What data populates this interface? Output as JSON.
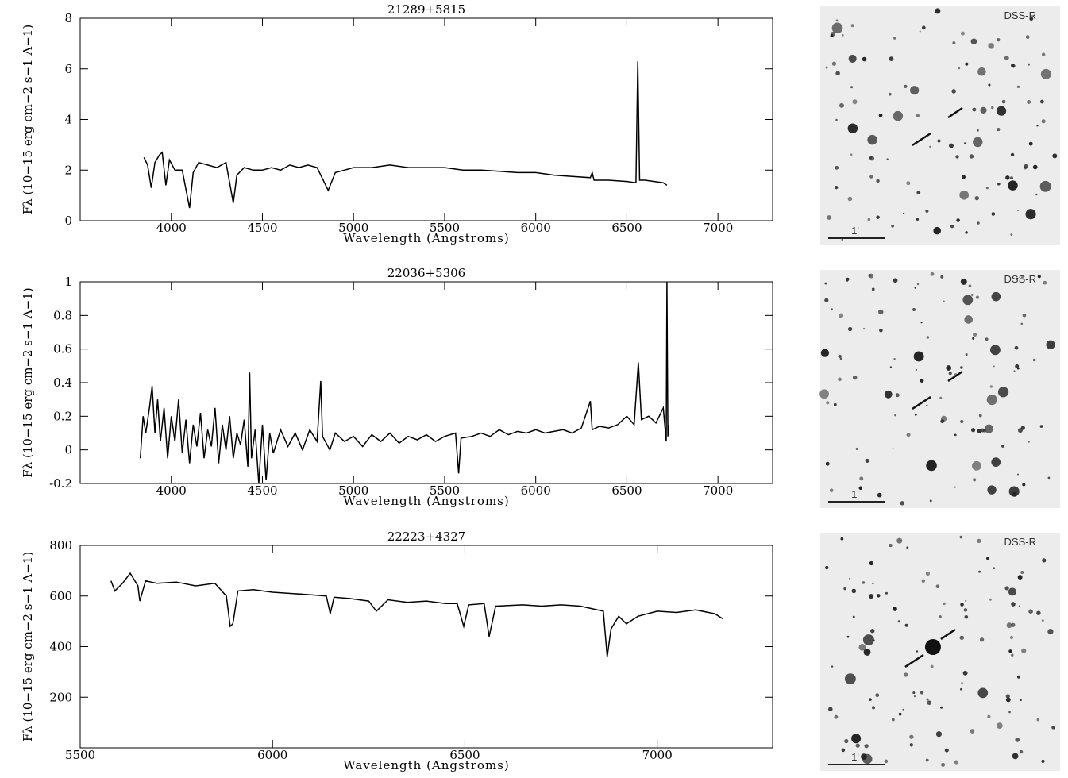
{
  "chart_data": [
    {
      "type": "line",
      "title": "21289+5815",
      "x_label": "Wavelength (Angstroms)",
      "y_label": "Fλ (10−15 erg cm−2 s−1 A−1)",
      "color": "#000000",
      "xlim": [
        3500,
        7300
      ],
      "xticks": [
        4000,
        4500,
        5000,
        5500,
        6000,
        6500,
        7000
      ],
      "ylim": [
        0,
        8
      ],
      "yticks": [
        0,
        2,
        4,
        6,
        8
      ],
      "x": [
        3850,
        3870,
        3890,
        3910,
        3935,
        3950,
        3970,
        3990,
        4020,
        4060,
        4100,
        4120,
        4150,
        4200,
        4250,
        4300,
        4340,
        4360,
        4400,
        4450,
        4500,
        4550,
        4600,
        4650,
        4700,
        4750,
        4800,
        4861,
        4900,
        4950,
        5000,
        5100,
        5200,
        5300,
        5400,
        5500,
        5600,
        5700,
        5800,
        5900,
        6000,
        6100,
        6200,
        6300,
        6310,
        6320,
        6400,
        6500,
        6550,
        6560,
        6570,
        6600,
        6650,
        6700,
        6720
      ],
      "values": [
        2.5,
        2.2,
        1.3,
        2.3,
        2.6,
        2.7,
        1.4,
        2.4,
        2.0,
        2.0,
        0.5,
        1.9,
        2.3,
        2.2,
        2.1,
        2.3,
        0.7,
        1.8,
        2.1,
        2.0,
        2.0,
        2.1,
        2.0,
        2.2,
        2.1,
        2.2,
        2.1,
        1.2,
        1.9,
        2.0,
        2.1,
        2.1,
        2.2,
        2.1,
        2.1,
        2.1,
        2.0,
        2.0,
        1.95,
        1.9,
        1.9,
        1.8,
        1.75,
        1.7,
        1.9,
        1.6,
        1.6,
        1.55,
        1.5,
        6.3,
        1.6,
        1.6,
        1.55,
        1.5,
        1.4
      ]
    },
    {
      "type": "line",
      "title": "22036+5306",
      "x_label": "Wavelength (Angstroms)",
      "y_label": "Fλ (10−15 erg cm−2 s−1 A−1)",
      "color": "#000000",
      "xlim": [
        3500,
        7300
      ],
      "xticks": [
        4000,
        4500,
        5000,
        5500,
        6000,
        6500,
        7000
      ],
      "ylim": [
        -0.2,
        1
      ],
      "yticks": [
        -0.2,
        0,
        0.2,
        0.4,
        0.6,
        0.8,
        1
      ],
      "x": [
        3830,
        3845,
        3860,
        3880,
        3895,
        3910,
        3925,
        3940,
        3960,
        3980,
        4000,
        4020,
        4040,
        4060,
        4080,
        4100,
        4120,
        4140,
        4160,
        4180,
        4200,
        4220,
        4240,
        4260,
        4280,
        4300,
        4320,
        4340,
        4360,
        4380,
        4400,
        4420,
        4430,
        4440,
        4460,
        4480,
        4500,
        4520,
        4540,
        4560,
        4600,
        4640,
        4680,
        4720,
        4760,
        4800,
        4820,
        4830,
        4870,
        4900,
        4950,
        5000,
        5050,
        5100,
        5150,
        5200,
        5250,
        5300,
        5350,
        5400,
        5450,
        5500,
        5560,
        5577,
        5590,
        5650,
        5700,
        5750,
        5800,
        5850,
        5900,
        5950,
        6000,
        6050,
        6100,
        6150,
        6200,
        6250,
        6300,
        6310,
        6350,
        6400,
        6450,
        6500,
        6540,
        6563,
        6580,
        6620,
        6660,
        6700,
        6716,
        6720,
        6725,
        6730
      ],
      "values": [
        -0.05,
        0.2,
        0.1,
        0.25,
        0.38,
        0.1,
        0.3,
        0.05,
        0.25,
        -0.05,
        0.2,
        0.05,
        0.3,
        -0.02,
        0.18,
        -0.08,
        0.15,
        0.02,
        0.22,
        -0.05,
        0.12,
        0.02,
        0.25,
        -0.08,
        0.15,
        0.0,
        0.2,
        -0.05,
        0.1,
        0.03,
        0.18,
        -0.1,
        0.46,
        -0.05,
        0.12,
        -0.2,
        0.15,
        -0.18,
        0.1,
        -0.02,
        0.12,
        0.02,
        0.1,
        0.0,
        0.12,
        0.05,
        0.41,
        0.08,
        0.0,
        0.1,
        0.05,
        0.08,
        0.02,
        0.09,
        0.05,
        0.1,
        0.04,
        0.08,
        0.06,
        0.09,
        0.05,
        0.08,
        0.1,
        -0.14,
        0.07,
        0.08,
        0.1,
        0.08,
        0.12,
        0.09,
        0.11,
        0.1,
        0.12,
        0.1,
        0.11,
        0.12,
        0.1,
        0.13,
        0.29,
        0.12,
        0.14,
        0.13,
        0.15,
        0.2,
        0.15,
        0.52,
        0.18,
        0.2,
        0.16,
        0.25,
        0.05,
        1.0,
        0.08,
        0.15
      ]
    },
    {
      "type": "line",
      "title": "22223+4327",
      "x_label": "Wavelength (Angstroms)",
      "y_label": "Fλ (10−15 erg cm−2 s−1 A−1)",
      "color": "#000000",
      "xlim": [
        5500,
        7300
      ],
      "xticks": [
        5500,
        6000,
        6500,
        7000
      ],
      "ylim": [
        0,
        800
      ],
      "yticks": [
        200,
        400,
        600,
        800
      ],
      "x": [
        5580,
        5590,
        5610,
        5630,
        5650,
        5655,
        5670,
        5700,
        5750,
        5800,
        5850,
        5880,
        5890,
        5897,
        5910,
        5950,
        6000,
        6050,
        6100,
        6140,
        6150,
        6160,
        6200,
        6250,
        6270,
        6300,
        6350,
        6400,
        6450,
        6480,
        6497,
        6510,
        6550,
        6563,
        6580,
        6650,
        6700,
        6750,
        6800,
        6860,
        6870,
        6880,
        6900,
        6920,
        6950,
        7000,
        7050,
        7100,
        7150,
        7170
      ],
      "values": [
        660,
        620,
        650,
        690,
        640,
        580,
        660,
        650,
        655,
        640,
        650,
        600,
        480,
        490,
        620,
        625,
        615,
        610,
        605,
        600,
        530,
        595,
        590,
        580,
        540,
        585,
        575,
        580,
        570,
        570,
        480,
        565,
        570,
        440,
        560,
        565,
        560,
        565,
        560,
        540,
        360,
        470,
        520,
        490,
        520,
        540,
        535,
        545,
        530,
        510
      ]
    }
  ],
  "images": [
    {
      "label": "DSS-R",
      "scale": "1'"
    },
    {
      "label": "DSS-R",
      "scale": "1'"
    },
    {
      "label": "DSS-R",
      "scale": "1'"
    }
  ]
}
